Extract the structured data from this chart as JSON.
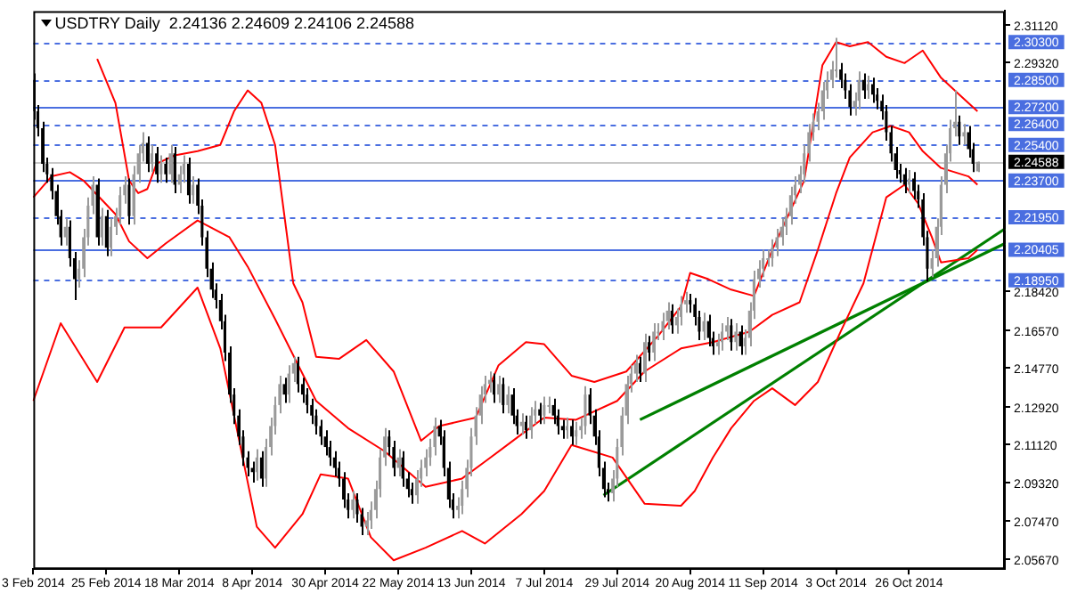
{
  "chart_data": {
    "type": "candlestick",
    "title": "USDTRY Daily  2.24136 2.24609 2.24106 2.24588",
    "categories": [
      "3 Feb 2014",
      null,
      null,
      null,
      null,
      null,
      null,
      null,
      null,
      null,
      null,
      null,
      null,
      null,
      null,
      null,
      "25 Feb 2014",
      null,
      null,
      null,
      null,
      null,
      null,
      null,
      null,
      null,
      null,
      null,
      null,
      null,
      null,
      null,
      "18 Mar 2014",
      null,
      null,
      null,
      null,
      null,
      null,
      null,
      null,
      null,
      null,
      null,
      null,
      null,
      null,
      null,
      "8 Apr 2014",
      null,
      null,
      null,
      null,
      null,
      null,
      null,
      null,
      null,
      null,
      null,
      null,
      null,
      null,
      null,
      "30 Apr 2014",
      null,
      null,
      null,
      null,
      null,
      null,
      null,
      null,
      null,
      null,
      null,
      null,
      null,
      null,
      null,
      "22 May 2014",
      null,
      null,
      null,
      null,
      null,
      null,
      null,
      null,
      null,
      null,
      null,
      null,
      null,
      null,
      null,
      "13 Jun 2014",
      null,
      null,
      null,
      null,
      null,
      null,
      null,
      null,
      null,
      null,
      null,
      null,
      null,
      null,
      null,
      "7 Jul 2014",
      null,
      null,
      null,
      null,
      null,
      null,
      null,
      null,
      null,
      null,
      null,
      null,
      null,
      null,
      null,
      "29 Jul 2014",
      null,
      null,
      null,
      null,
      null,
      null,
      null,
      null,
      null,
      null,
      null,
      null,
      null,
      null,
      null,
      "20 Aug 2014",
      null,
      null,
      null,
      null,
      null,
      null,
      null,
      null,
      null,
      null,
      null,
      null,
      null,
      null,
      null,
      "11 Sep 2014",
      null,
      null,
      null,
      null,
      null,
      null,
      null,
      null,
      null,
      null,
      null,
      null,
      null,
      null,
      null,
      "3 Oct 2014",
      null,
      null,
      null,
      null,
      null,
      null,
      null,
      null,
      null,
      null,
      null,
      null,
      null,
      null,
      null,
      "26 Oct 2014",
      null,
      null,
      null,
      null,
      null,
      null,
      null,
      null,
      null,
      null,
      null,
      null,
      null,
      null,
      null,
      null,
      null,
      null,
      null,
      null,
      null
    ],
    "ohlc": [
      [
        2.285,
        2.288,
        2.266,
        2.27
      ],
      [
        2.27,
        2.273,
        2.258,
        2.262
      ],
      [
        2.262,
        2.265,
        2.241,
        2.245
      ],
      [
        2.245,
        2.248,
        2.236,
        2.24
      ],
      [
        2.24,
        2.243,
        2.228,
        2.232
      ],
      [
        2.232,
        2.235,
        2.216,
        2.22
      ],
      [
        2.22,
        2.223,
        2.206,
        2.21
      ],
      [
        2.21,
        2.219,
        2.206,
        2.215
      ],
      [
        2.215,
        2.218,
        2.196,
        2.2
      ],
      [
        2.2,
        2.203,
        2.18,
        2.19
      ],
      [
        2.19,
        2.199,
        2.186,
        2.195
      ],
      [
        2.195,
        2.214,
        2.191,
        2.21
      ],
      [
        2.21,
        2.229,
        2.206,
        2.225
      ],
      [
        2.225,
        2.239,
        2.221,
        2.235
      ],
      [
        2.235,
        2.238,
        2.206,
        2.21
      ],
      [
        2.21,
        2.224,
        2.206,
        2.22
      ],
      [
        2.22,
        2.223,
        2.201,
        2.205
      ],
      [
        2.205,
        2.219,
        2.201,
        2.215
      ],
      [
        2.215,
        2.224,
        2.211,
        2.22
      ],
      [
        2.22,
        2.234,
        2.216,
        2.23
      ],
      [
        2.23,
        2.239,
        2.226,
        2.235
      ],
      [
        2.235,
        2.238,
        2.216,
        2.22
      ],
      [
        2.22,
        2.244,
        2.216,
        2.24
      ],
      [
        2.24,
        2.254,
        2.236,
        2.25
      ],
      [
        2.25,
        2.26,
        2.246,
        2.255
      ],
      [
        2.255,
        2.258,
        2.241,
        2.245
      ],
      [
        2.245,
        2.254,
        2.241,
        2.25
      ],
      [
        2.25,
        2.253,
        2.236,
        2.24
      ],
      [
        2.24,
        2.249,
        2.236,
        2.245
      ],
      [
        2.245,
        2.248,
        2.236,
        2.24
      ],
      [
        2.24,
        2.254,
        2.236,
        2.25
      ],
      [
        2.25,
        2.253,
        2.231,
        2.235
      ],
      [
        2.235,
        2.244,
        2.231,
        2.24
      ],
      [
        2.24,
        2.249,
        2.236,
        2.245
      ],
      [
        2.245,
        2.248,
        2.226,
        2.23
      ],
      [
        2.23,
        2.239,
        2.226,
        2.235
      ],
      [
        2.235,
        2.238,
        2.221,
        2.225
      ],
      [
        2.225,
        2.228,
        2.206,
        2.21
      ],
      [
        2.21,
        2.213,
        2.191,
        2.195
      ],
      [
        2.195,
        2.198,
        2.181,
        2.185
      ],
      [
        2.185,
        2.188,
        2.176,
        2.18
      ],
      [
        2.18,
        2.183,
        2.166,
        2.17
      ],
      [
        2.17,
        2.173,
        2.151,
        2.155
      ],
      [
        2.155,
        2.158,
        2.131,
        2.135
      ],
      [
        2.135,
        2.138,
        2.121,
        2.125
      ],
      [
        2.125,
        2.128,
        2.111,
        2.115
      ],
      [
        2.115,
        2.118,
        2.101,
        2.105
      ],
      [
        2.105,
        2.108,
        2.096,
        2.1
      ],
      [
        2.1,
        2.103,
        2.093,
        2.098
      ],
      [
        2.098,
        2.109,
        2.094,
        2.105
      ],
      [
        2.105,
        2.108,
        2.091,
        2.095
      ],
      [
        2.095,
        2.114,
        2.091,
        2.11
      ],
      [
        2.11,
        2.124,
        2.106,
        2.12
      ],
      [
        2.12,
        2.134,
        2.116,
        2.13
      ],
      [
        2.13,
        2.144,
        2.126,
        2.14
      ],
      [
        2.14,
        2.143,
        2.131,
        2.135
      ],
      [
        2.135,
        2.149,
        2.131,
        2.145
      ],
      [
        2.145,
        2.153,
        2.141,
        2.15
      ],
      [
        2.15,
        2.153,
        2.136,
        2.14
      ],
      [
        2.14,
        2.143,
        2.131,
        2.135
      ],
      [
        2.135,
        2.138,
        2.126,
        2.13
      ],
      [
        2.13,
        2.133,
        2.121,
        2.125
      ],
      [
        2.125,
        2.128,
        2.116,
        2.12
      ],
      [
        2.12,
        2.123,
        2.111,
        2.115
      ],
      [
        2.115,
        2.118,
        2.106,
        2.11
      ],
      [
        2.11,
        2.113,
        2.101,
        2.105
      ],
      [
        2.105,
        2.108,
        2.096,
        2.1
      ],
      [
        2.1,
        2.103,
        2.091,
        2.095
      ],
      [
        2.095,
        2.098,
        2.081,
        2.085
      ],
      [
        2.085,
        2.088,
        2.076,
        2.08
      ],
      [
        2.08,
        2.089,
        2.076,
        2.085
      ],
      [
        2.085,
        2.088,
        2.074,
        2.078
      ],
      [
        2.078,
        2.081,
        2.068,
        2.072
      ],
      [
        2.072,
        2.079,
        2.068,
        2.075
      ],
      [
        2.075,
        2.084,
        2.071,
        2.08
      ],
      [
        2.08,
        2.094,
        2.076,
        2.09
      ],
      [
        2.09,
        2.109,
        2.086,
        2.105
      ],
      [
        2.105,
        2.119,
        2.101,
        2.115
      ],
      [
        2.115,
        2.118,
        2.106,
        2.11
      ],
      [
        2.11,
        2.113,
        2.096,
        2.1
      ],
      [
        2.1,
        2.109,
        2.096,
        2.105
      ],
      [
        2.105,
        2.108,
        2.091,
        2.095
      ],
      [
        2.095,
        2.098,
        2.086,
        2.09
      ],
      [
        2.09,
        2.093,
        2.083,
        2.087
      ],
      [
        2.087,
        2.099,
        2.083,
        2.095
      ],
      [
        2.095,
        2.104,
        2.091,
        2.1
      ],
      [
        2.1,
        2.109,
        2.096,
        2.105
      ],
      [
        2.105,
        2.114,
        2.101,
        2.11
      ],
      [
        2.11,
        2.124,
        2.106,
        2.12
      ],
      [
        2.12,
        2.123,
        2.111,
        2.115
      ],
      [
        2.115,
        2.118,
        2.096,
        2.1
      ],
      [
        2.1,
        2.103,
        2.081,
        2.085
      ],
      [
        2.085,
        2.088,
        2.076,
        2.08
      ],
      [
        2.08,
        2.086,
        2.076,
        2.082
      ],
      [
        2.082,
        2.094,
        2.078,
        2.09
      ],
      [
        2.09,
        2.104,
        2.086,
        2.1
      ],
      [
        2.1,
        2.119,
        2.096,
        2.115
      ],
      [
        2.115,
        2.129,
        2.111,
        2.125
      ],
      [
        2.125,
        2.139,
        2.121,
        2.135
      ],
      [
        2.135,
        2.144,
        2.131,
        2.14
      ],
      [
        2.14,
        2.146,
        2.136,
        2.142
      ],
      [
        2.142,
        2.145,
        2.131,
        2.135
      ],
      [
        2.135,
        2.144,
        2.131,
        2.14
      ],
      [
        2.14,
        2.143,
        2.126,
        2.13
      ],
      [
        2.13,
        2.139,
        2.126,
        2.135
      ],
      [
        2.135,
        2.138,
        2.121,
        2.125
      ],
      [
        2.125,
        2.128,
        2.116,
        2.12
      ],
      [
        2.12,
        2.126,
        2.116,
        2.122
      ],
      [
        2.122,
        2.125,
        2.114,
        2.118
      ],
      [
        2.118,
        2.129,
        2.114,
        2.125
      ],
      [
        2.125,
        2.132,
        2.121,
        2.128
      ],
      [
        2.128,
        2.131,
        2.121,
        2.125
      ],
      [
        2.125,
        2.134,
        2.121,
        2.13
      ],
      [
        2.13,
        2.134,
        2.126,
        2.13
      ],
      [
        2.13,
        2.133,
        2.121,
        2.125
      ],
      [
        2.125,
        2.128,
        2.116,
        2.12
      ],
      [
        2.12,
        2.123,
        2.114,
        2.118
      ],
      [
        2.118,
        2.124,
        2.114,
        2.12
      ],
      [
        2.12,
        2.123,
        2.111,
        2.115
      ],
      [
        2.115,
        2.122,
        2.111,
        2.118
      ],
      [
        2.118,
        2.124,
        2.114,
        2.12
      ],
      [
        2.12,
        2.139,
        2.116,
        2.135
      ],
      [
        2.135,
        2.138,
        2.121,
        2.125
      ],
      [
        2.125,
        2.128,
        2.111,
        2.115
      ],
      [
        2.115,
        2.118,
        2.096,
        2.1
      ],
      [
        2.1,
        2.103,
        2.086,
        2.09
      ],
      [
        2.09,
        2.093,
        2.084,
        2.088
      ],
      [
        2.088,
        2.099,
        2.084,
        2.095
      ],
      [
        2.095,
        2.114,
        2.091,
        2.11
      ],
      [
        2.11,
        2.129,
        2.106,
        2.125
      ],
      [
        2.125,
        2.144,
        2.121,
        2.14
      ],
      [
        2.14,
        2.149,
        2.136,
        2.145
      ],
      [
        2.145,
        2.154,
        2.141,
        2.15
      ],
      [
        2.15,
        2.153,
        2.141,
        2.145
      ],
      [
        2.145,
        2.164,
        2.141,
        2.16
      ],
      [
        2.16,
        2.163,
        2.151,
        2.155
      ],
      [
        2.155,
        2.169,
        2.151,
        2.165
      ],
      [
        2.165,
        2.169,
        2.161,
        2.165
      ],
      [
        2.165,
        2.174,
        2.161,
        2.17
      ],
      [
        2.17,
        2.179,
        2.166,
        2.175
      ],
      [
        2.175,
        2.178,
        2.164,
        2.168
      ],
      [
        2.168,
        2.176,
        2.164,
        2.172
      ],
      [
        2.172,
        2.182,
        2.168,
        2.178
      ],
      [
        2.178,
        2.184,
        2.174,
        2.18
      ],
      [
        2.18,
        2.183,
        2.174,
        2.178
      ],
      [
        2.178,
        2.181,
        2.168,
        2.172
      ],
      [
        2.172,
        2.175,
        2.161,
        2.165
      ],
      [
        2.165,
        2.174,
        2.161,
        2.17
      ],
      [
        2.17,
        2.173,
        2.158,
        2.162
      ],
      [
        2.162,
        2.165,
        2.154,
        2.158
      ],
      [
        2.158,
        2.164,
        2.154,
        2.16
      ],
      [
        2.16,
        2.169,
        2.156,
        2.165
      ],
      [
        2.165,
        2.172,
        2.161,
        2.168
      ],
      [
        2.168,
        2.171,
        2.156,
        2.16
      ],
      [
        2.16,
        2.169,
        2.156,
        2.165
      ],
      [
        2.165,
        2.168,
        2.154,
        2.158
      ],
      [
        2.158,
        2.166,
        2.154,
        2.162
      ],
      [
        2.162,
        2.179,
        2.158,
        2.175
      ],
      [
        2.175,
        2.194,
        2.171,
        2.19
      ],
      [
        2.19,
        2.199,
        2.186,
        2.195
      ],
      [
        2.195,
        2.204,
        2.191,
        2.2
      ],
      [
        2.2,
        2.204,
        2.196,
        2.2
      ],
      [
        2.2,
        2.209,
        2.196,
        2.205
      ],
      [
        2.205,
        2.214,
        2.201,
        2.21
      ],
      [
        2.21,
        2.219,
        2.206,
        2.215
      ],
      [
        2.215,
        2.224,
        2.211,
        2.22
      ],
      [
        2.22,
        2.234,
        2.216,
        2.23
      ],
      [
        2.23,
        2.239,
        2.226,
        2.235
      ],
      [
        2.235,
        2.244,
        2.231,
        2.24
      ],
      [
        2.24,
        2.254,
        2.236,
        2.25
      ],
      [
        2.25,
        2.264,
        2.246,
        2.26
      ],
      [
        2.26,
        2.269,
        2.256,
        2.265
      ],
      [
        2.265,
        2.274,
        2.261,
        2.27
      ],
      [
        2.27,
        2.284,
        2.266,
        2.28
      ],
      [
        2.28,
        2.289,
        2.276,
        2.285
      ],
      [
        2.285,
        2.294,
        2.281,
        2.29
      ],
      [
        2.29,
        2.305,
        2.286,
        2.29
      ],
      [
        2.29,
        2.293,
        2.281,
        2.285
      ],
      [
        2.285,
        2.288,
        2.276,
        2.28
      ],
      [
        2.28,
        2.283,
        2.268,
        2.272
      ],
      [
        2.272,
        2.279,
        2.268,
        2.275
      ],
      [
        2.275,
        2.289,
        2.271,
        2.285
      ],
      [
        2.285,
        2.288,
        2.276,
        2.28
      ],
      [
        2.28,
        2.287,
        2.276,
        2.283
      ],
      [
        2.283,
        2.286,
        2.274,
        2.278
      ],
      [
        2.278,
        2.281,
        2.271,
        2.275
      ],
      [
        2.275,
        2.278,
        2.266,
        2.27
      ],
      [
        2.27,
        2.273,
        2.256,
        2.26
      ],
      [
        2.26,
        2.263,
        2.246,
        2.25
      ],
      [
        2.25,
        2.253,
        2.238,
        2.242
      ],
      [
        2.242,
        2.245,
        2.236,
        2.24
      ],
      [
        2.24,
        2.243,
        2.231,
        2.235
      ],
      [
        2.235,
        2.242,
        2.231,
        2.238
      ],
      [
        2.238,
        2.241,
        2.228,
        2.232
      ],
      [
        2.232,
        2.235,
        2.224,
        2.228
      ],
      [
        2.228,
        2.231,
        2.206,
        2.21
      ],
      [
        2.21,
        2.213,
        2.189,
        2.195
      ],
      [
        2.195,
        2.204,
        2.191,
        2.2
      ],
      [
        2.2,
        2.219,
        2.196,
        2.215
      ],
      [
        2.215,
        2.239,
        2.211,
        2.235
      ],
      [
        2.235,
        2.254,
        2.231,
        2.25
      ],
      [
        2.25,
        2.266,
        2.246,
        2.262
      ],
      [
        2.262,
        2.28,
        2.258,
        2.265
      ],
      [
        2.265,
        2.268,
        2.254,
        2.258
      ],
      [
        2.258,
        2.264,
        2.254,
        2.26
      ],
      [
        2.26,
        2.263,
        2.248,
        2.252
      ],
      [
        2.252,
        2.255,
        2.241,
        2.245
      ],
      [
        2.24136,
        2.24609,
        2.24106,
        2.24588
      ],
      null,
      null,
      null,
      null,
      null,
      null
    ],
    "series": [
      {
        "type": "line",
        "color": "#ff0000",
        "values": [
          null,
          null,
          null,
          null,
          null,
          null,
          null,
          null,
          null,
          null,
          null,
          null,
          null,
          null,
          2.295,
          null,
          null,
          null,
          2.274,
          null,
          null,
          2.237,
          null,
          2.231,
          null,
          2.233,
          null,
          2.245,
          null,
          null,
          null,
          2.249,
          null,
          null,
          null,
          null,
          2.251,
          null,
          null,
          null,
          null,
          2.254,
          null,
          null,
          2.27,
          null,
          null,
          2.28,
          null,
          null,
          2.274,
          null,
          null,
          2.254,
          null,
          2.221,
          null,
          2.188,
          null,
          2.179,
          null,
          null,
          2.153,
          null,
          null,
          null,
          null,
          2.152,
          null,
          null,
          null,
          null,
          null,
          2.161,
          null,
          null,
          null,
          null,
          null,
          2.146,
          null,
          null,
          null,
          null,
          null,
          2.113,
          null,
          null,
          null,
          2.12,
          null,
          null,
          null,
          null,
          null,
          null,
          null,
          2.124,
          null,
          null,
          null,
          null,
          2.149,
          null,
          null,
          null,
          null,
          null,
          2.16,
          null,
          null,
          null,
          2.159,
          null,
          null,
          null,
          null,
          null,
          2.144,
          null,
          null,
          null,
          null,
          2.141,
          null,
          null,
          null,
          null,
          null,
          null,
          2.146,
          null,
          null,
          null,
          null,
          null,
          null,
          2.163,
          null,
          null,
          null,
          null,
          2.177,
          null,
          2.193,
          null,
          null,
          null,
          2.19,
          null,
          null,
          null,
          null,
          2.185,
          null,
          null,
          null,
          null,
          2.182,
          null,
          null,
          null,
          2.204,
          null,
          null,
          2.218,
          null,
          null,
          null,
          2.237,
          null,
          null,
          null,
          2.292,
          null,
          null,
          2.303,
          null,
          null,
          2.301,
          null,
          null,
          null,
          2.303,
          null,
          null,
          null,
          2.296,
          null,
          null,
          null,
          2.293,
          null,
          null,
          null,
          2.299,
          null,
          null,
          null,
          2.286,
          null,
          null,
          null,
          2.278,
          null,
          null,
          null,
          2.27,
          null,
          null,
          null,
          null,
          null,
          null
        ]
      },
      {
        "type": "line",
        "color": "#ff0000",
        "values": [
          2.229,
          null,
          null,
          null,
          2.239,
          null,
          null,
          null,
          2.241,
          null,
          null,
          2.237,
          null,
          null,
          null,
          null,
          null,
          null,
          2.221,
          null,
          null,
          2.208,
          null,
          null,
          null,
          2.2,
          null,
          null,
          null,
          2.207,
          null,
          null,
          null,
          null,
          null,
          null,
          2.218,
          null,
          null,
          null,
          null,
          null,
          null,
          2.21,
          null,
          null,
          null,
          2.196,
          null,
          null,
          null,
          null,
          null,
          2.171,
          null,
          null,
          null,
          null,
          null,
          null,
          null,
          null,
          2.132,
          null,
          null,
          null,
          null,
          null,
          null,
          2.119,
          null,
          null,
          null,
          null,
          null,
          null,
          null,
          2.108,
          null,
          null,
          null,
          null,
          null,
          null,
          null,
          null,
          2.091,
          null,
          null,
          null,
          null,
          null,
          null,
          null,
          2.095,
          null,
          null,
          null,
          null,
          2.103,
          null,
          null,
          null,
          null,
          null,
          null,
          null,
          2.116,
          null,
          null,
          null,
          null,
          2.124,
          null,
          null,
          null,
          null,
          null,
          null,
          2.123,
          null,
          null,
          null,
          null,
          null,
          null,
          null,
          null,
          2.132,
          null,
          null,
          null,
          null,
          null,
          2.146,
          null,
          null,
          null,
          null,
          null,
          null,
          null,
          2.157,
          null,
          null,
          null,
          null,
          null,
          null,
          2.16,
          null,
          null,
          null,
          null,
          null,
          null,
          null,
          2.165,
          null,
          null,
          null,
          null,
          2.173,
          null,
          null,
          null,
          null,
          null,
          2.179,
          null,
          null,
          null,
          2.204,
          null,
          null,
          null,
          2.231,
          null,
          null,
          2.248,
          null,
          null,
          null,
          null,
          2.26,
          null,
          null,
          null,
          2.263,
          null,
          null,
          null,
          2.26,
          null,
          null,
          2.251,
          null,
          null,
          null,
          2.243,
          null,
          null,
          null,
          null,
          null,
          2.239,
          null,
          2.235,
          null,
          null,
          null,
          null,
          null,
          null
        ]
      },
      {
        "type": "line",
        "color": "#ff0000",
        "values": [
          2.132,
          null,
          null,
          null,
          null,
          null,
          2.169,
          null,
          null,
          null,
          null,
          null,
          null,
          null,
          2.141,
          null,
          null,
          null,
          null,
          null,
          2.167,
          null,
          null,
          null,
          null,
          null,
          null,
          null,
          2.167,
          null,
          null,
          null,
          null,
          null,
          null,
          null,
          2.186,
          null,
          null,
          null,
          null,
          2.157,
          null,
          null,
          null,
          null,
          null,
          null,
          null,
          2.072,
          null,
          null,
          null,
          2.062,
          null,
          null,
          null,
          null,
          null,
          2.078,
          null,
          null,
          null,
          2.097,
          null,
          null,
          null,
          null,
          null,
          2.095,
          null,
          null,
          null,
          null,
          2.067,
          null,
          null,
          null,
          null,
          2.056,
          null,
          null,
          null,
          null,
          null,
          null,
          2.062,
          null,
          null,
          null,
          null,
          null,
          null,
          null,
          2.07,
          null,
          null,
          null,
          null,
          2.064,
          null,
          null,
          null,
          null,
          null,
          null,
          null,
          2.078,
          null,
          null,
          null,
          null,
          2.089,
          null,
          null,
          null,
          null,
          null,
          2.111,
          null,
          null,
          null,
          null,
          null,
          null,
          null,
          null,
          2.105,
          null,
          null,
          null,
          null,
          null,
          null,
          2.083,
          null,
          null,
          null,
          null,
          null,
          null,
          null,
          2.082,
          null,
          null,
          2.089,
          null,
          null,
          null,
          2.105,
          null,
          null,
          null,
          2.119,
          null,
          null,
          null,
          null,
          2.132,
          null,
          null,
          null,
          2.138,
          null,
          null,
          null,
          null,
          2.13,
          null,
          null,
          null,
          null,
          2.141,
          null,
          null,
          null,
          null,
          2.165,
          null,
          null,
          null,
          null,
          2.188,
          null,
          null,
          null,
          null,
          2.229,
          null,
          null,
          null,
          2.235,
          null,
          null,
          2.226,
          null,
          null,
          2.21,
          null,
          2.198,
          null,
          null,
          null,
          null,
          null,
          2.2,
          null,
          2.204,
          null,
          null,
          null,
          null,
          null,
          null
        ]
      },
      {
        "type": "line",
        "color": "#008000",
        "values": [
          null,
          null,
          null,
          null,
          null,
          null,
          null,
          null,
          null,
          null,
          null,
          null,
          null,
          null,
          null,
          null,
          null,
          null,
          null,
          null,
          null,
          null,
          null,
          null,
          null,
          null,
          null,
          null,
          null,
          null,
          null,
          null,
          null,
          null,
          null,
          null,
          null,
          null,
          null,
          null,
          null,
          null,
          null,
          null,
          null,
          null,
          null,
          null,
          null,
          null,
          null,
          null,
          null,
          null,
          null,
          null,
          null,
          null,
          null,
          null,
          null,
          null,
          null,
          null,
          null,
          null,
          null,
          null,
          null,
          null,
          null,
          null,
          null,
          null,
          null,
          null,
          null,
          null,
          null,
          null,
          null,
          null,
          null,
          null,
          null,
          null,
          null,
          null,
          null,
          null,
          null,
          null,
          null,
          null,
          null,
          null,
          null,
          null,
          null,
          null,
          null,
          null,
          null,
          null,
          null,
          null,
          null,
          null,
          null,
          null,
          null,
          null,
          null,
          null,
          null,
          null,
          null,
          null,
          null,
          null,
          null,
          null,
          null,
          null,
          null,
          2.087,
          null,
          null,
          null,
          null,
          null,
          null,
          null,
          null,
          null,
          null,
          null,
          null,
          null,
          null,
          null,
          null,
          null,
          null,
          null,
          null,
          null,
          null,
          null,
          null,
          null,
          null,
          null,
          null,
          null,
          null,
          null,
          null,
          null,
          null,
          null,
          null,
          null,
          null,
          null,
          null,
          null,
          null,
          null,
          null,
          null,
          null,
          null,
          null,
          null,
          null,
          null,
          null,
          null,
          null,
          null,
          null,
          null,
          null,
          null,
          null,
          null,
          null,
          null,
          null,
          null,
          null,
          null,
          null,
          null,
          null,
          null,
          null,
          null,
          null,
          null,
          null,
          null,
          null,
          null,
          null,
          null,
          null,
          null,
          null,
          null,
          null,
          null,
          2.214
        ]
      },
      {
        "type": "line",
        "color": "#008000",
        "values": [
          null,
          null,
          null,
          null,
          null,
          null,
          null,
          null,
          null,
          null,
          null,
          null,
          null,
          null,
          null,
          null,
          null,
          null,
          null,
          null,
          null,
          null,
          null,
          null,
          null,
          null,
          null,
          null,
          null,
          null,
          null,
          null,
          null,
          null,
          null,
          null,
          null,
          null,
          null,
          null,
          null,
          null,
          null,
          null,
          null,
          null,
          null,
          null,
          null,
          null,
          null,
          null,
          null,
          null,
          null,
          null,
          null,
          null,
          null,
          null,
          null,
          null,
          null,
          null,
          null,
          null,
          null,
          null,
          null,
          null,
          null,
          null,
          null,
          null,
          null,
          null,
          null,
          null,
          null,
          null,
          null,
          null,
          null,
          null,
          null,
          null,
          null,
          null,
          null,
          null,
          null,
          null,
          null,
          null,
          null,
          null,
          null,
          null,
          null,
          null,
          null,
          null,
          null,
          null,
          null,
          null,
          null,
          null,
          null,
          null,
          null,
          null,
          null,
          null,
          null,
          null,
          null,
          null,
          null,
          null,
          null,
          null,
          null,
          null,
          null,
          null,
          null,
          null,
          null,
          null,
          null,
          null,
          null,
          2.123,
          null,
          null,
          null,
          null,
          null,
          null,
          null,
          null,
          null,
          null,
          null,
          null,
          null,
          null,
          null,
          null,
          null,
          null,
          null,
          null,
          null,
          null,
          null,
          null,
          null,
          null,
          null,
          null,
          null,
          null,
          null,
          null,
          null,
          null,
          null,
          null,
          null,
          null,
          null,
          null,
          null,
          null,
          null,
          null,
          null,
          null,
          null,
          null,
          null,
          null,
          null,
          null,
          null,
          null,
          null,
          null,
          null,
          null,
          null,
          null,
          null,
          null,
          null,
          null,
          null,
          null,
          null,
          null,
          null,
          null,
          null,
          null,
          null,
          null,
          null,
          null,
          null,
          null,
          null,
          2.207
        ]
      }
    ],
    "ylim": [
      2.0518,
      2.3178
    ],
    "yticks": [
      {
        "value": 2.3112,
        "label": "2.31120"
      },
      {
        "value": 2.2932,
        "label": "2.29320"
      },
      {
        "value": 2.1842,
        "label": "2.18420"
      },
      {
        "value": 2.1657,
        "label": "2.16570"
      },
      {
        "value": 2.1477,
        "label": "2.14770"
      },
      {
        "value": 2.1292,
        "label": "2.12920"
      },
      {
        "value": 2.1112,
        "label": "2.11120"
      },
      {
        "value": 2.0932,
        "label": "2.09320"
      },
      {
        "value": 2.0747,
        "label": "2.07470"
      },
      {
        "value": 2.0567,
        "label": "2.05670"
      }
    ],
    "ref_lines": [
      {
        "axis": "y",
        "value": 2.303,
        "label": "2.30300",
        "color": "#4a6ee0",
        "line_style": "dashed"
      },
      {
        "axis": "y",
        "value": 2.285,
        "label": "2.28500",
        "color": "#4a6ee0",
        "line_style": "dashed"
      },
      {
        "axis": "y",
        "value": 2.272,
        "label": "2.27200",
        "color": "#4a6ee0",
        "line_style": "solid"
      },
      {
        "axis": "y",
        "value": 2.264,
        "label": "2.26400",
        "color": "#4a6ee0",
        "line_style": "dashed"
      },
      {
        "axis": "y",
        "value": 2.254,
        "label": "2.25400",
        "color": "#4a6ee0",
        "line_style": "dashed"
      },
      {
        "axis": "y",
        "value": 2.24588,
        "label": "2.24588",
        "color": "#c8c8c8",
        "line_style": "solid"
      },
      {
        "axis": "y",
        "value": 2.237,
        "label": "2.23700",
        "color": "#4a6ee0",
        "line_style": "solid"
      },
      {
        "axis": "y",
        "value": 2.2195,
        "label": "2.21950",
        "color": "#4a6ee0",
        "line_style": "dashed"
      },
      {
        "axis": "y",
        "value": 2.20405,
        "label": "2.20405",
        "color": "#4a6ee0",
        "line_style": "solid"
      },
      {
        "axis": "y",
        "value": 2.1895,
        "label": "2.18950",
        "color": "#4a6ee0",
        "line_style": "dashed"
      }
    ],
    "grid": false,
    "legend": false
  }
}
